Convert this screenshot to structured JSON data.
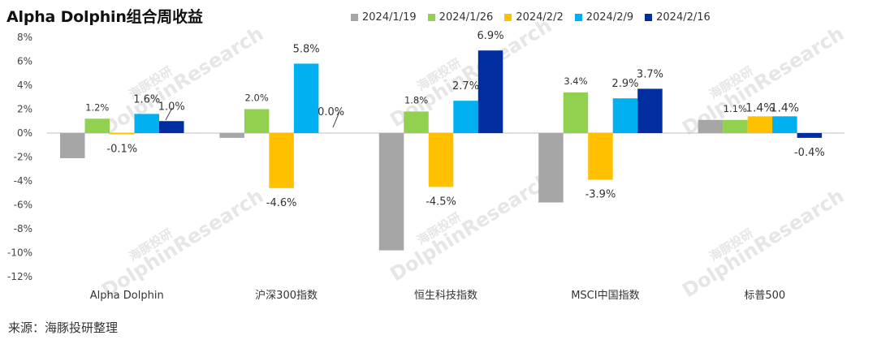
{
  "chart_data": {
    "type": "bar",
    "title": "Alpha Dolphin组合周收益",
    "categories": [
      "Alpha Dolphin",
      "沪深300指数",
      "恒生科技指数",
      "MSCI中国指数",
      "标普500"
    ],
    "series": [
      {
        "name": "2024/1/19",
        "color": "#a6a6a6",
        "values": [
          -2.1,
          -0.4,
          -9.8,
          -5.8,
          1.1
        ],
        "labels": [
          null,
          null,
          null,
          null,
          null
        ]
      },
      {
        "name": "2024/1/26",
        "color": "#92d050",
        "values": [
          1.2,
          2.0,
          1.8,
          3.4,
          1.1
        ],
        "labels": [
          "1.2%",
          "2.0%",
          "1.8%",
          "3.4%",
          "1.1%"
        ]
      },
      {
        "name": "2024/2/2",
        "color": "#ffc000",
        "values": [
          -0.1,
          -4.6,
          -4.5,
          -3.9,
          1.4
        ],
        "labels": [
          "-0.1%",
          "-4.6%",
          "-4.5%",
          "-3.9%",
          "1.4%"
        ]
      },
      {
        "name": "2024/2/9",
        "color": "#00b0f0",
        "values": [
          1.6,
          5.8,
          2.7,
          2.9,
          1.4
        ],
        "labels": [
          "1.6%",
          "5.8%",
          "2.7%",
          "2.9%",
          "1.4%"
        ]
      },
      {
        "name": "2024/2/16",
        "color": "#002ea0",
        "values": [
          1.0,
          0.0,
          6.9,
          3.7,
          -0.4
        ],
        "labels": [
          "1.0%",
          "0.0%",
          "6.9%",
          "3.7%",
          "-0.4%"
        ]
      }
    ],
    "ylim": [
      -12,
      8
    ],
    "yticks": [
      "8%",
      "6%",
      "4%",
      "2%",
      "0%",
      "-2%",
      "-4%",
      "-6%",
      "-8%",
      "-10%",
      "-12%"
    ],
    "legend_position": "top",
    "grid": false
  },
  "watermark": {
    "cn": "海豚投研",
    "en": "DolphinResearch"
  },
  "source": "来源：海豚投研整理"
}
